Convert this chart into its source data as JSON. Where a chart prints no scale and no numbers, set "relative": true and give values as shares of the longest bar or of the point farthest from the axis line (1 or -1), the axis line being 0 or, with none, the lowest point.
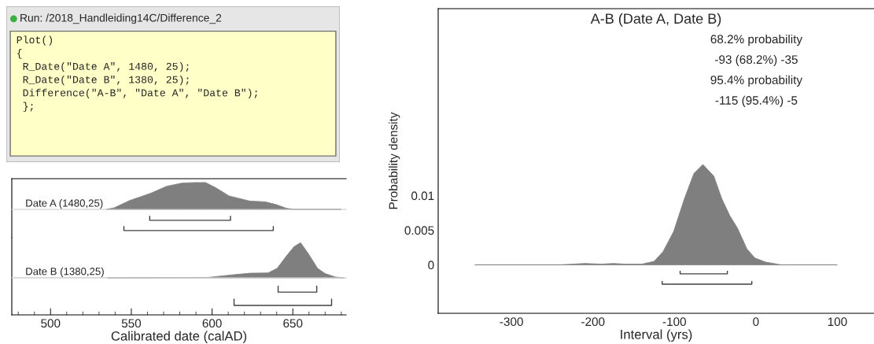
{
  "chart_data": [
    {
      "type": "other",
      "title": "Run: /2018_Handleiding14C/Difference_2",
      "annotations": [
        "Plot()",
        "{",
        " R_Date(\"Date A\", 1480, 25);",
        " R_Date(\"Date B\", 1380, 25);",
        " Difference(\"A-B\", \"Date A\", \"Date B\");",
        " };"
      ]
    },
    {
      "type": "area",
      "relative": true,
      "xlim": [
        476,
        683
      ],
      "tick_labels": false,
      "grid": false,
      "legend": false,
      "series": [
        {
          "name": "Date A (1480,25)",
          "color": "#7f7f7f",
          "x": [
            534.6,
            539.5,
            549,
            562,
            571.8,
            581.5,
            589.5,
            596,
            602.5,
            610.5,
            623.4,
            633,
            639.5,
            646,
            651,
            680
          ],
          "values": [
            0,
            0.06,
            0.33,
            0.6,
            0.86,
            0.98,
            1,
            1,
            0.8,
            0.5,
            0.31,
            0.28,
            0.18,
            0.04,
            0,
            0
          ]
        },
        {
          "type": "line",
          "color": "#404040",
          "x": [
            561.4,
            561.4,
            611.4,
            611.4
          ],
          "values": [
            -0.26,
            -0.41,
            -0.41,
            -0.26
          ]
        },
        {
          "type": "line",
          "color": "#404040",
          "x": [
            545.4,
            545.4,
            637.9,
            637.9
          ],
          "values": [
            -0.64,
            -0.79,
            -0.79,
            -0.64
          ]
        }
      ]
    },
    {
      "type": "area",
      "relative": true,
      "xlim": [
        476,
        683
      ],
      "xticks": [
        500,
        550,
        600,
        650
      ],
      "tick_labels": "x",
      "xlabel": "Calibrated date (calAD)",
      "grid": false,
      "legend": false,
      "series": [
        {
          "name": "Date B (1380,25)",
          "color": "#7f7f7f",
          "x": [
            535.3,
            597.5,
            613.6,
            623.4,
            634.7,
            640.3,
            646,
            650.8,
            654.8,
            659.7,
            665.3,
            670,
            676.5,
            681.4
          ],
          "values": [
            0,
            0.01,
            0.09,
            0.13,
            0.14,
            0.27,
            0.62,
            0.89,
            1,
            0.68,
            0.27,
            0.12,
            0.02,
            0
          ]
        },
        {
          "type": "line",
          "color": "#404040",
          "x": [
            640.9,
            640.9,
            664.8,
            664.8
          ],
          "values": [
            -0.24,
            -0.41,
            -0.41,
            -0.24
          ]
        },
        {
          "type": "line",
          "color": "#404040",
          "x": [
            613.6,
            613.6,
            674,
            674
          ],
          "values": [
            -0.61,
            -0.79,
            -0.79,
            -0.61
          ]
        }
      ]
    },
    {
      "type": "area",
      "title": "A-B (Date A, Date B)",
      "xlabel": "Interval (yrs)",
      "ylabel": "Probability density",
      "xlim": [
        -390,
        145
      ],
      "xticks": [
        -300,
        -200,
        -100,
        0,
        100
      ],
      "ylim": [
        -0.007,
        0.037
      ],
      "yticks": [
        0,
        0.005,
        0.01
      ],
      "grid": false,
      "legend": false,
      "annotations": [
        "68.2% probability",
        "-93 (68.2%) -35",
        "95.4% probability",
        "-115 (95.4%) -5"
      ],
      "series": [
        {
          "color": "#7f7f7f",
          "x": [
            -345,
            -240,
            -210,
            -190,
            -175,
            -160,
            -140,
            -125,
            -114,
            -101,
            -87.6,
            -76,
            -65,
            -51.6,
            -42,
            -32,
            -22.6,
            -11,
            -1.3,
            12,
            31,
            40,
            100
          ],
          "values": [
            0,
            0,
            0.0002,
            0.0001,
            0.0002,
            0.0001,
            0.0001,
            0.0005,
            0.0019,
            0.0048,
            0.0096,
            0.0132,
            0.0145,
            0.0128,
            0.0096,
            0.0071,
            0.0053,
            0.0023,
            0.001,
            0.0004,
            0,
            0,
            0
          ]
        },
        {
          "type": "line",
          "color": "#404040",
          "x": [
            -93,
            -93,
            -35,
            -35
          ],
          "values": [
            -0.0009,
            -0.0013,
            -0.0013,
            -0.0009
          ]
        },
        {
          "type": "line",
          "color": "#404040",
          "x": [
            -115,
            -115,
            -5,
            -5
          ],
          "values": [
            -0.0024,
            -0.0028,
            -0.0028,
            -0.0024
          ]
        }
      ]
    }
  ]
}
